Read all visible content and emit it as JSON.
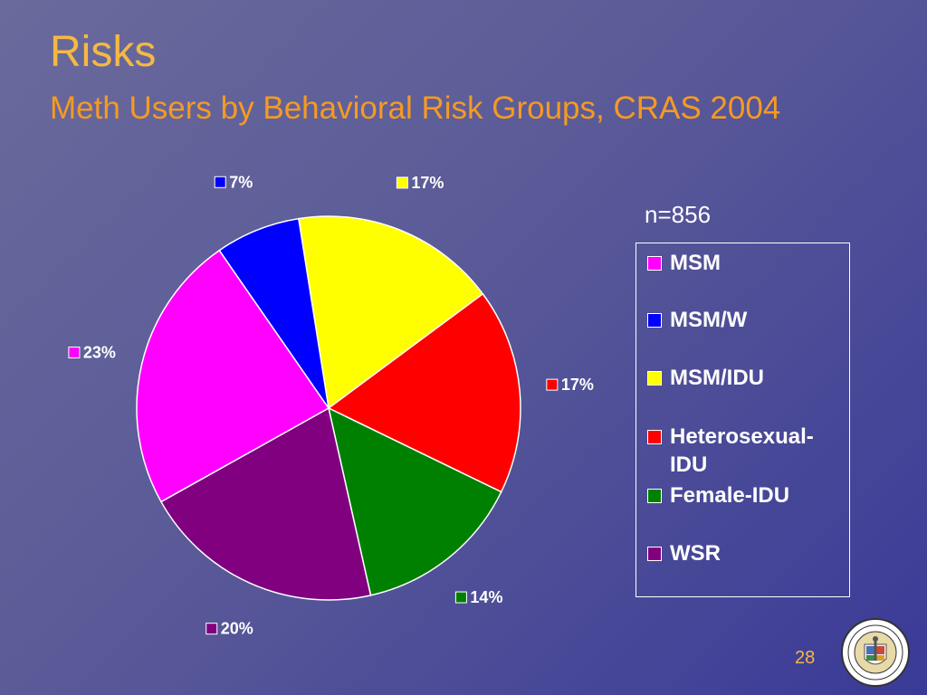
{
  "slide": {
    "title": "Risks",
    "subtitle": "Meth Users by Behavioral Risk Groups, CRAS 2004",
    "n_label": "n=856",
    "page_number": "28",
    "seal_icon": "county-of-los-angeles-seal-icon"
  },
  "legend": {
    "placement": "right",
    "items": [
      {
        "label": "MSM",
        "color": "#ff00ff"
      },
      {
        "label": "MSM/W",
        "color": "#0000ff"
      },
      {
        "label": "MSM/IDU",
        "color": "#ffff00"
      },
      {
        "label": "Heterosexual-IDU",
        "color": "#ff0000"
      },
      {
        "label": "Female-IDU",
        "color": "#008000"
      },
      {
        "label": "WSR",
        "color": "#800080"
      }
    ]
  },
  "chart_data": {
    "type": "pie",
    "title": "Meth Users by Behavioral Risk Groups, CRAS 2004",
    "categories": [
      "MSM",
      "MSM/W",
      "MSM/IDU",
      "Heterosexual-IDU",
      "Female-IDU",
      "WSR"
    ],
    "values": [
      23,
      7,
      17,
      17,
      14,
      20
    ],
    "labels": [
      "23%",
      "7%",
      "17%",
      "17%",
      "14%",
      "20%"
    ],
    "colors": [
      "#ff00ff",
      "#0000ff",
      "#ffff00",
      "#ff0000",
      "#008000",
      "#800080"
    ],
    "legend_position": "right"
  }
}
